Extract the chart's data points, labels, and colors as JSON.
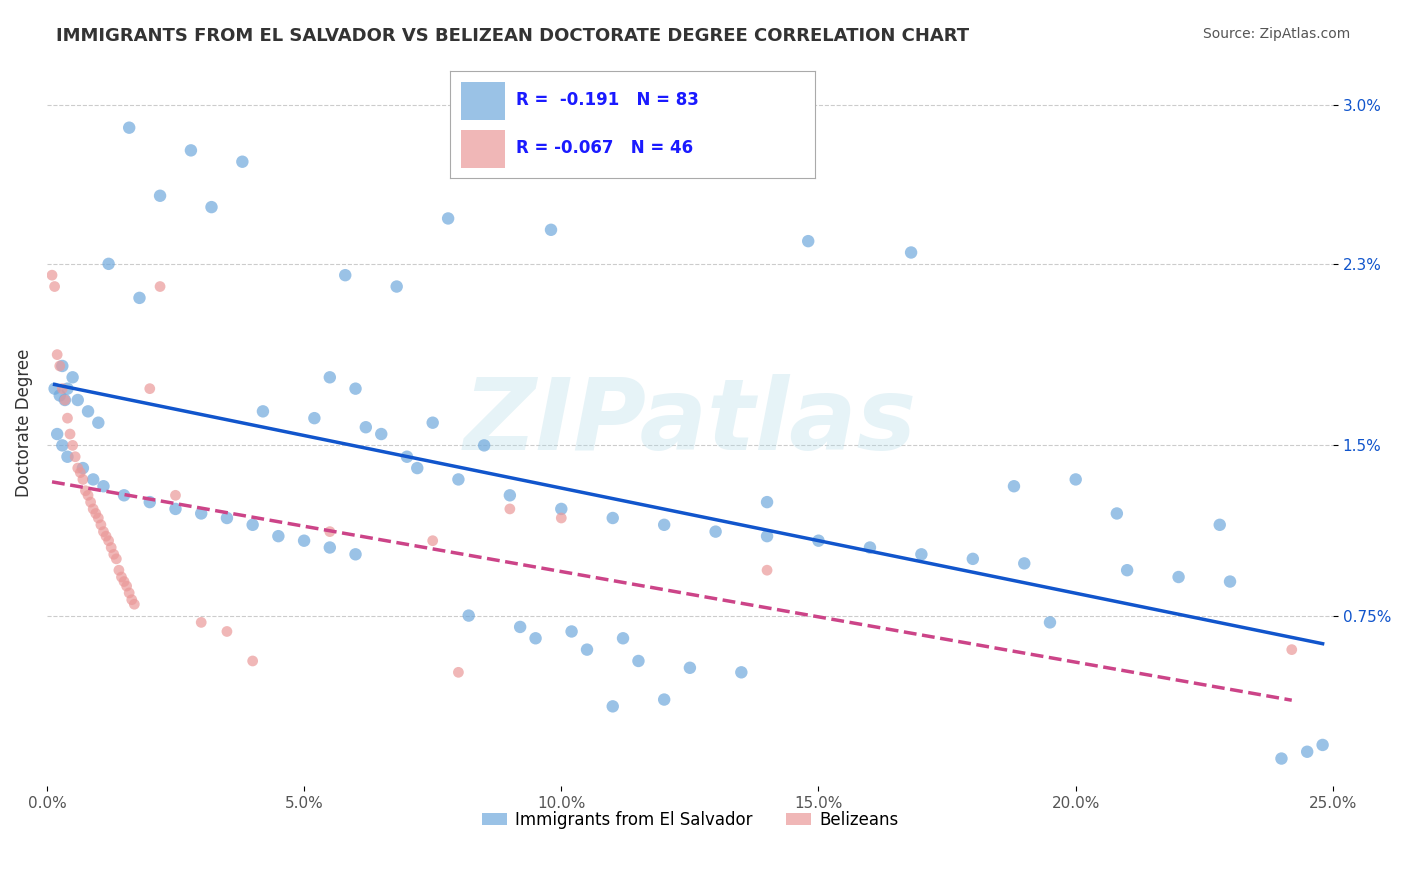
{
  "title": "IMMIGRANTS FROM EL SALVADOR VS BELIZEAN DOCTORATE DEGREE CORRELATION CHART",
  "source": "Source: ZipAtlas.com",
  "xlabel_bottom": "",
  "ylabel": "Doctorate Degree",
  "x_tick_labels": [
    "0.0%",
    "5.0%",
    "10.0%",
    "15.0%",
    "20.0%",
    "25.0%"
  ],
  "x_tick_positions": [
    0.0,
    5.0,
    10.0,
    15.0,
    20.0,
    25.0
  ],
  "y_tick_labels": [
    "0.75%",
    "1.5%",
    "2.3%",
    "3.0%"
  ],
  "y_tick_positions": [
    0.75,
    1.5,
    2.3,
    3.0
  ],
  "xlim": [
    0.0,
    25.0
  ],
  "ylim": [
    0.0,
    3.2
  ],
  "legend_r1": "R =  -0.191   N = 83",
  "legend_r2": "R = -0.067   N = 46",
  "legend_label1": "Immigrants from El Salvador",
  "legend_label2": "Belizeans",
  "blue_color": "#6fa8dc",
  "pink_color": "#ea9999",
  "blue_line_color": "#1155cc",
  "pink_line_color": "#cc4488",
  "watermark": "ZIPatlas",
  "blue_scatter_x": [
    1.2,
    1.8,
    0.3,
    0.5,
    0.4,
    0.6,
    0.8,
    1.0,
    0.2,
    0.3,
    0.4,
    0.7,
    0.9,
    1.1,
    1.5,
    2.0,
    2.5,
    3.0,
    3.5,
    4.0,
    4.5,
    5.0,
    5.5,
    6.0,
    6.5,
    7.0,
    8.0,
    9.0,
    10.0,
    11.0,
    12.0,
    13.0,
    14.0,
    15.0,
    16.0,
    17.0,
    18.0,
    19.0,
    20.0,
    21.0,
    22.0,
    23.0,
    5.5,
    6.0,
    7.5,
    8.5,
    9.5,
    10.5,
    11.5,
    12.5,
    13.5,
    2.2,
    3.2,
    4.2,
    5.2,
    6.2,
    7.2,
    8.2,
    9.2,
    10.2,
    11.2,
    1.6,
    2.8,
    3.8,
    7.8,
    9.8,
    14.8,
    16.8,
    18.8,
    20.8,
    22.8,
    0.15,
    0.25,
    0.35,
    24.0,
    24.5,
    24.8,
    14.0,
    12.0,
    11.0,
    19.5,
    5.8,
    6.8
  ],
  "blue_scatter_y": [
    2.3,
    2.15,
    1.85,
    1.8,
    1.75,
    1.7,
    1.65,
    1.6,
    1.55,
    1.5,
    1.45,
    1.4,
    1.35,
    1.32,
    1.28,
    1.25,
    1.22,
    1.2,
    1.18,
    1.15,
    1.1,
    1.08,
    1.05,
    1.02,
    1.55,
    1.45,
    1.35,
    1.28,
    1.22,
    1.18,
    1.15,
    1.12,
    1.1,
    1.08,
    1.05,
    1.02,
    1.0,
    0.98,
    1.35,
    0.95,
    0.92,
    0.9,
    1.8,
    1.75,
    1.6,
    1.5,
    0.65,
    0.6,
    0.55,
    0.52,
    0.5,
    2.6,
    2.55,
    1.65,
    1.62,
    1.58,
    1.4,
    0.75,
    0.7,
    0.68,
    0.65,
    2.9,
    2.8,
    2.75,
    2.5,
    2.45,
    2.4,
    2.35,
    1.32,
    1.2,
    1.15,
    1.75,
    1.72,
    1.7,
    0.12,
    0.15,
    0.18,
    1.25,
    0.38,
    0.35,
    0.72,
    2.25,
    2.2
  ],
  "pink_scatter_x": [
    0.1,
    0.15,
    0.2,
    0.25,
    0.3,
    0.35,
    0.4,
    0.45,
    0.5,
    0.55,
    0.6,
    0.65,
    0.7,
    0.75,
    0.8,
    0.85,
    0.9,
    0.95,
    1.0,
    1.05,
    1.1,
    1.15,
    1.2,
    1.25,
    1.3,
    1.35,
    1.4,
    1.45,
    1.5,
    1.55,
    1.6,
    1.65,
    1.7,
    2.0,
    2.2,
    2.5,
    3.0,
    3.5,
    4.0,
    5.5,
    7.5,
    8.0,
    9.0,
    10.0,
    14.0,
    24.2
  ],
  "pink_scatter_y": [
    2.25,
    2.2,
    1.9,
    1.85,
    1.75,
    1.7,
    1.62,
    1.55,
    1.5,
    1.45,
    1.4,
    1.38,
    1.35,
    1.3,
    1.28,
    1.25,
    1.22,
    1.2,
    1.18,
    1.15,
    1.12,
    1.1,
    1.08,
    1.05,
    1.02,
    1.0,
    0.95,
    0.92,
    0.9,
    0.88,
    0.85,
    0.82,
    0.8,
    1.75,
    2.2,
    1.28,
    0.72,
    0.68,
    0.55,
    1.12,
    1.08,
    0.5,
    1.22,
    1.18,
    0.95,
    0.6
  ],
  "blue_marker_size": 80,
  "pink_marker_size": 60,
  "blue_r": -0.191,
  "pink_r": -0.067,
  "blue_n": 83,
  "pink_n": 46,
  "background_color": "#ffffff",
  "grid_color": "#cccccc"
}
